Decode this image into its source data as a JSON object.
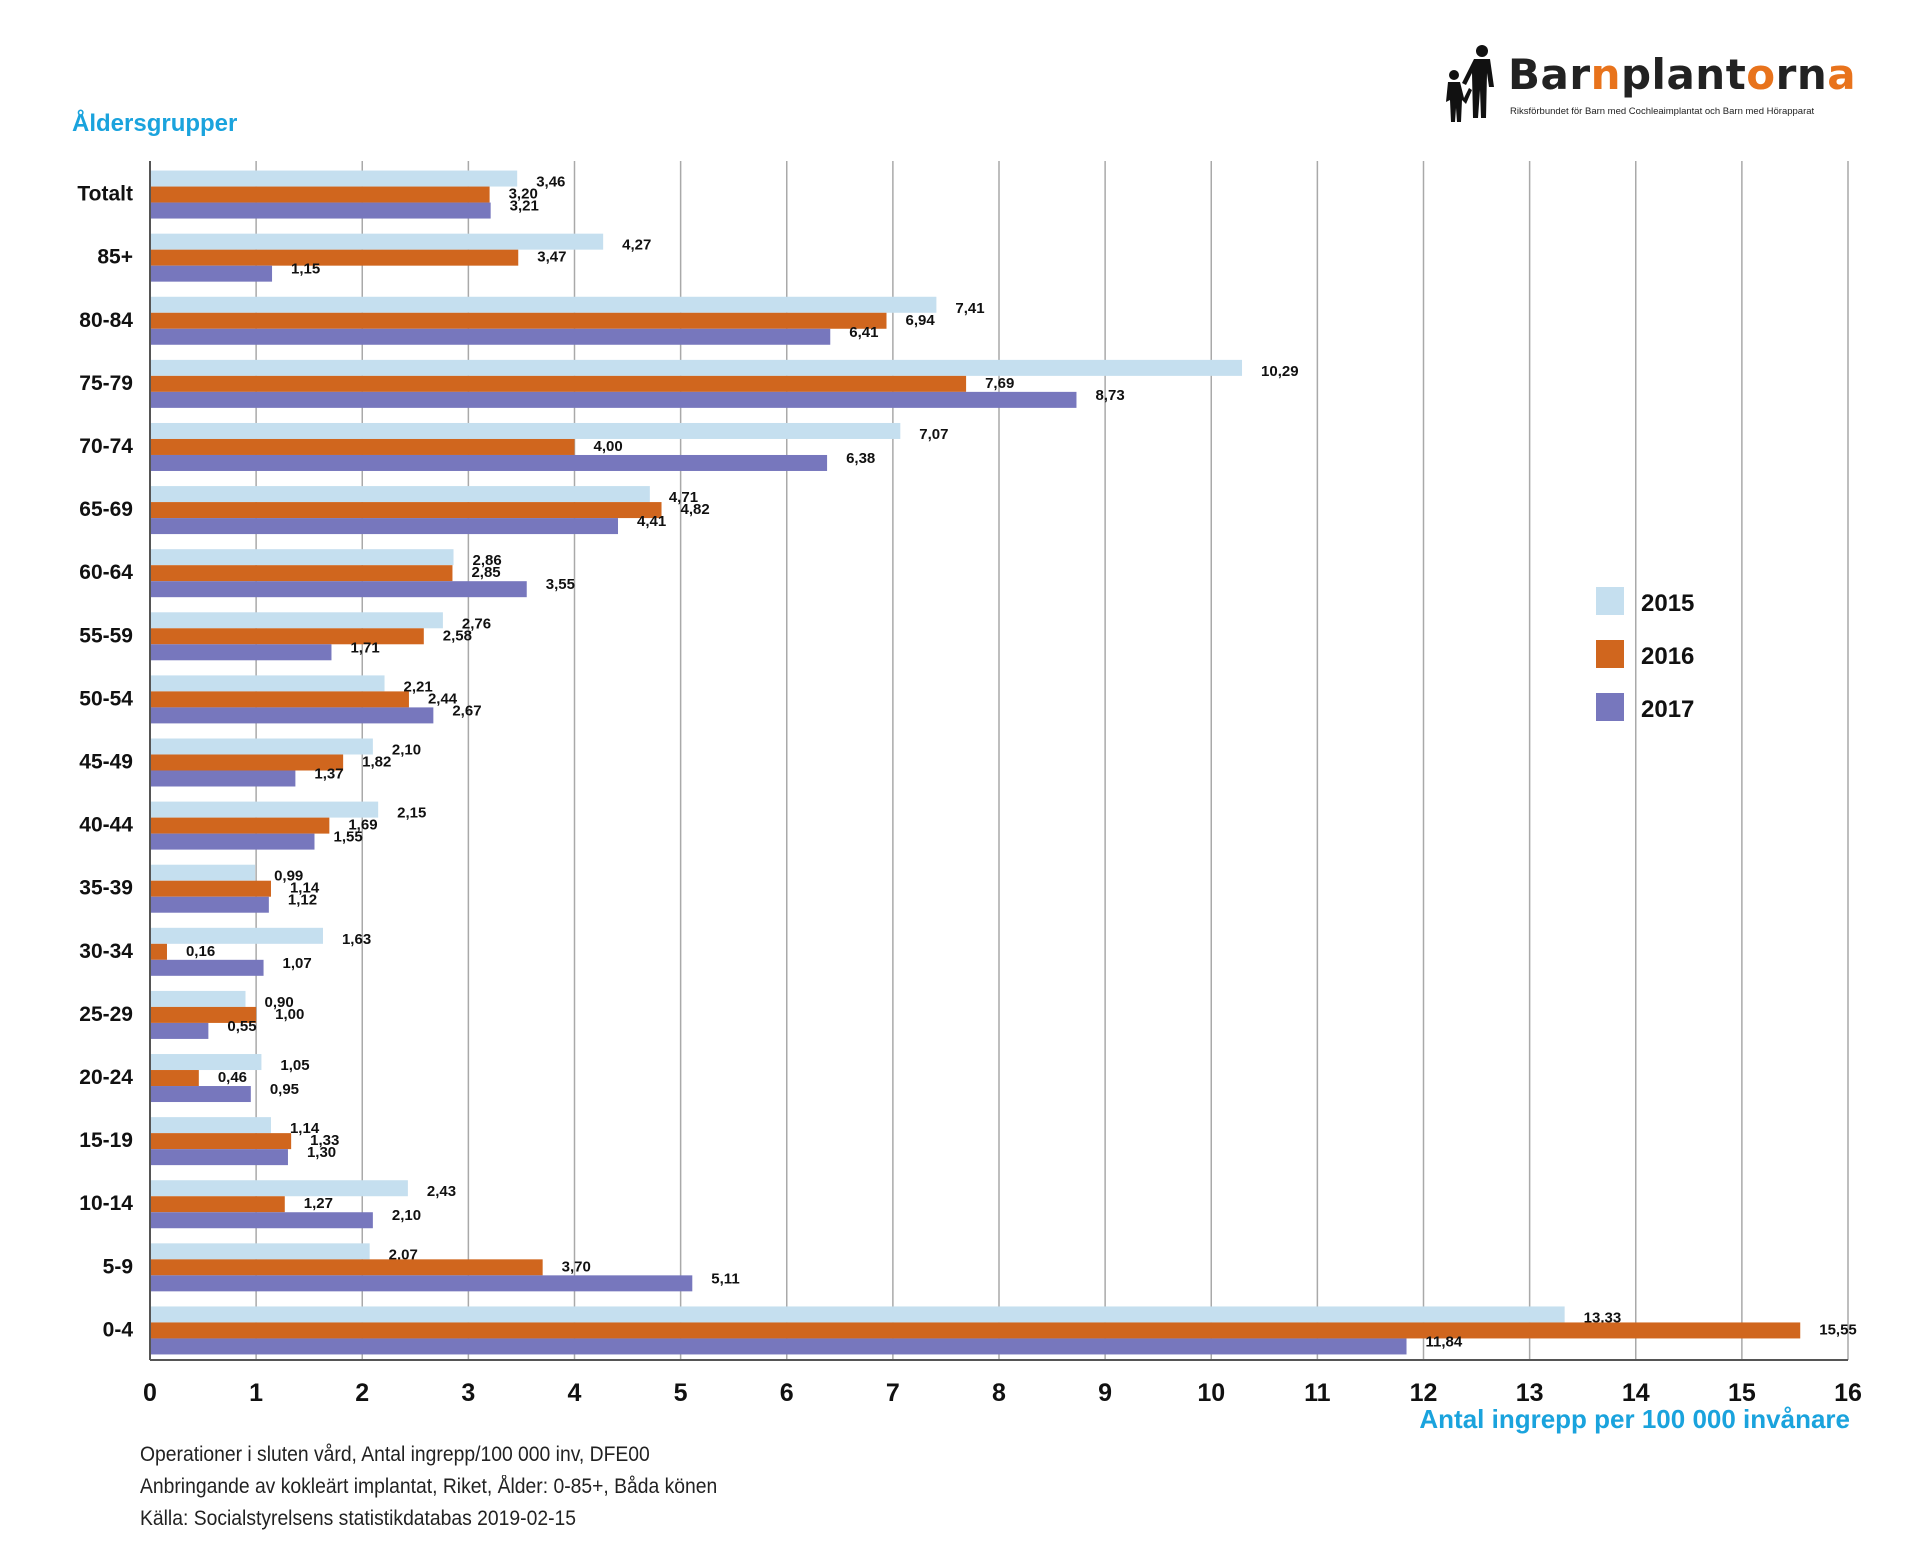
{
  "logo": {
    "parts": [
      "Bar",
      "n",
      "plant",
      "o",
      "rn",
      "a"
    ],
    "tagline": "Riksförbundet för Barn med Cochleaimplantat och Barn med Hörapparat",
    "icon": "parent-child-silhouette-icon",
    "brand_color": "#e8731c"
  },
  "footnotes": [
    "Operationer i sluten vård, Antal ingrepp/100 000 inv, DFE00",
    "Anbringande av kokleärt implantat, Riket, Ålder: 0-85+, Båda könen",
    "Källa: Socialstyrelsens statistikdatabas 2019-02-15"
  ],
  "chart_data": {
    "type": "bar",
    "orientation": "horizontal",
    "ylabel": "Åldersgrupper",
    "xlabel": "Antal ingrepp per 100 000 invånare",
    "title_color": "#1aa3dd",
    "xlim": [
      0,
      16
    ],
    "xticks": [
      "0",
      "1",
      "2",
      "3",
      "4",
      "5",
      "6",
      "7",
      "8",
      "9",
      "10",
      "11",
      "12",
      "13",
      "14",
      "15",
      "16"
    ],
    "grid": "vertical",
    "legend_position": "right",
    "categories": [
      "Totalt",
      "85+",
      "80-84",
      "75-79",
      "70-74",
      "65-69",
      "60-64",
      "55-59",
      "50-54",
      "45-49",
      "40-44",
      "35-39",
      "30-34",
      "25-29",
      "20-24",
      "15-19",
      "10-14",
      "5-9",
      "0-4"
    ],
    "series": [
      {
        "name": "2015",
        "color": "#c5dfef",
        "values": [
          3.46,
          4.27,
          7.41,
          10.29,
          7.07,
          4.71,
          2.86,
          2.76,
          2.21,
          2.1,
          2.15,
          0.99,
          1.63,
          0.9,
          1.05,
          1.14,
          2.43,
          2.07,
          13.33
        ],
        "labels": [
          "3,46",
          "4,27",
          "7,41",
          "10,29",
          "7,07",
          "4,71",
          "2,86",
          "2,76",
          "2,21",
          "2,10",
          "2,15",
          "0,99",
          "1,63",
          "0,90",
          "1,05",
          "1,14",
          "2,43",
          "2,07",
          "13,33"
        ]
      },
      {
        "name": "2016",
        "color": "#d0661e",
        "values": [
          3.2,
          3.47,
          6.94,
          7.69,
          4.0,
          4.82,
          2.85,
          2.58,
          2.44,
          1.82,
          1.69,
          1.14,
          0.16,
          1.0,
          0.46,
          1.33,
          1.27,
          3.7,
          15.55
        ],
        "labels": [
          "3,20",
          "3,47",
          "6,94",
          "7,69",
          "4,00",
          "4,82",
          "2,85",
          "2,58",
          "2,44",
          "1,82",
          "1,69",
          "1,14",
          "0,16",
          "1,00",
          "0,46",
          "1,33",
          "1,27",
          "3,70",
          "15,55"
        ]
      },
      {
        "name": "2017",
        "color": "#7777bd",
        "values": [
          3.21,
          1.15,
          6.41,
          8.73,
          6.38,
          4.41,
          3.55,
          1.71,
          2.67,
          1.37,
          1.55,
          1.12,
          1.07,
          0.55,
          0.95,
          1.3,
          2.1,
          5.11,
          11.84
        ],
        "labels": [
          "3,21",
          "1,15",
          "6,41",
          "8,73",
          "6,38",
          "4,41",
          "3,55",
          "1,71",
          "2,67",
          "1,37",
          "1,55",
          "1,12",
          "1,07",
          "0,55",
          "0,95",
          "1,30",
          "2,10",
          "5,11",
          "11,84"
        ]
      }
    ]
  }
}
